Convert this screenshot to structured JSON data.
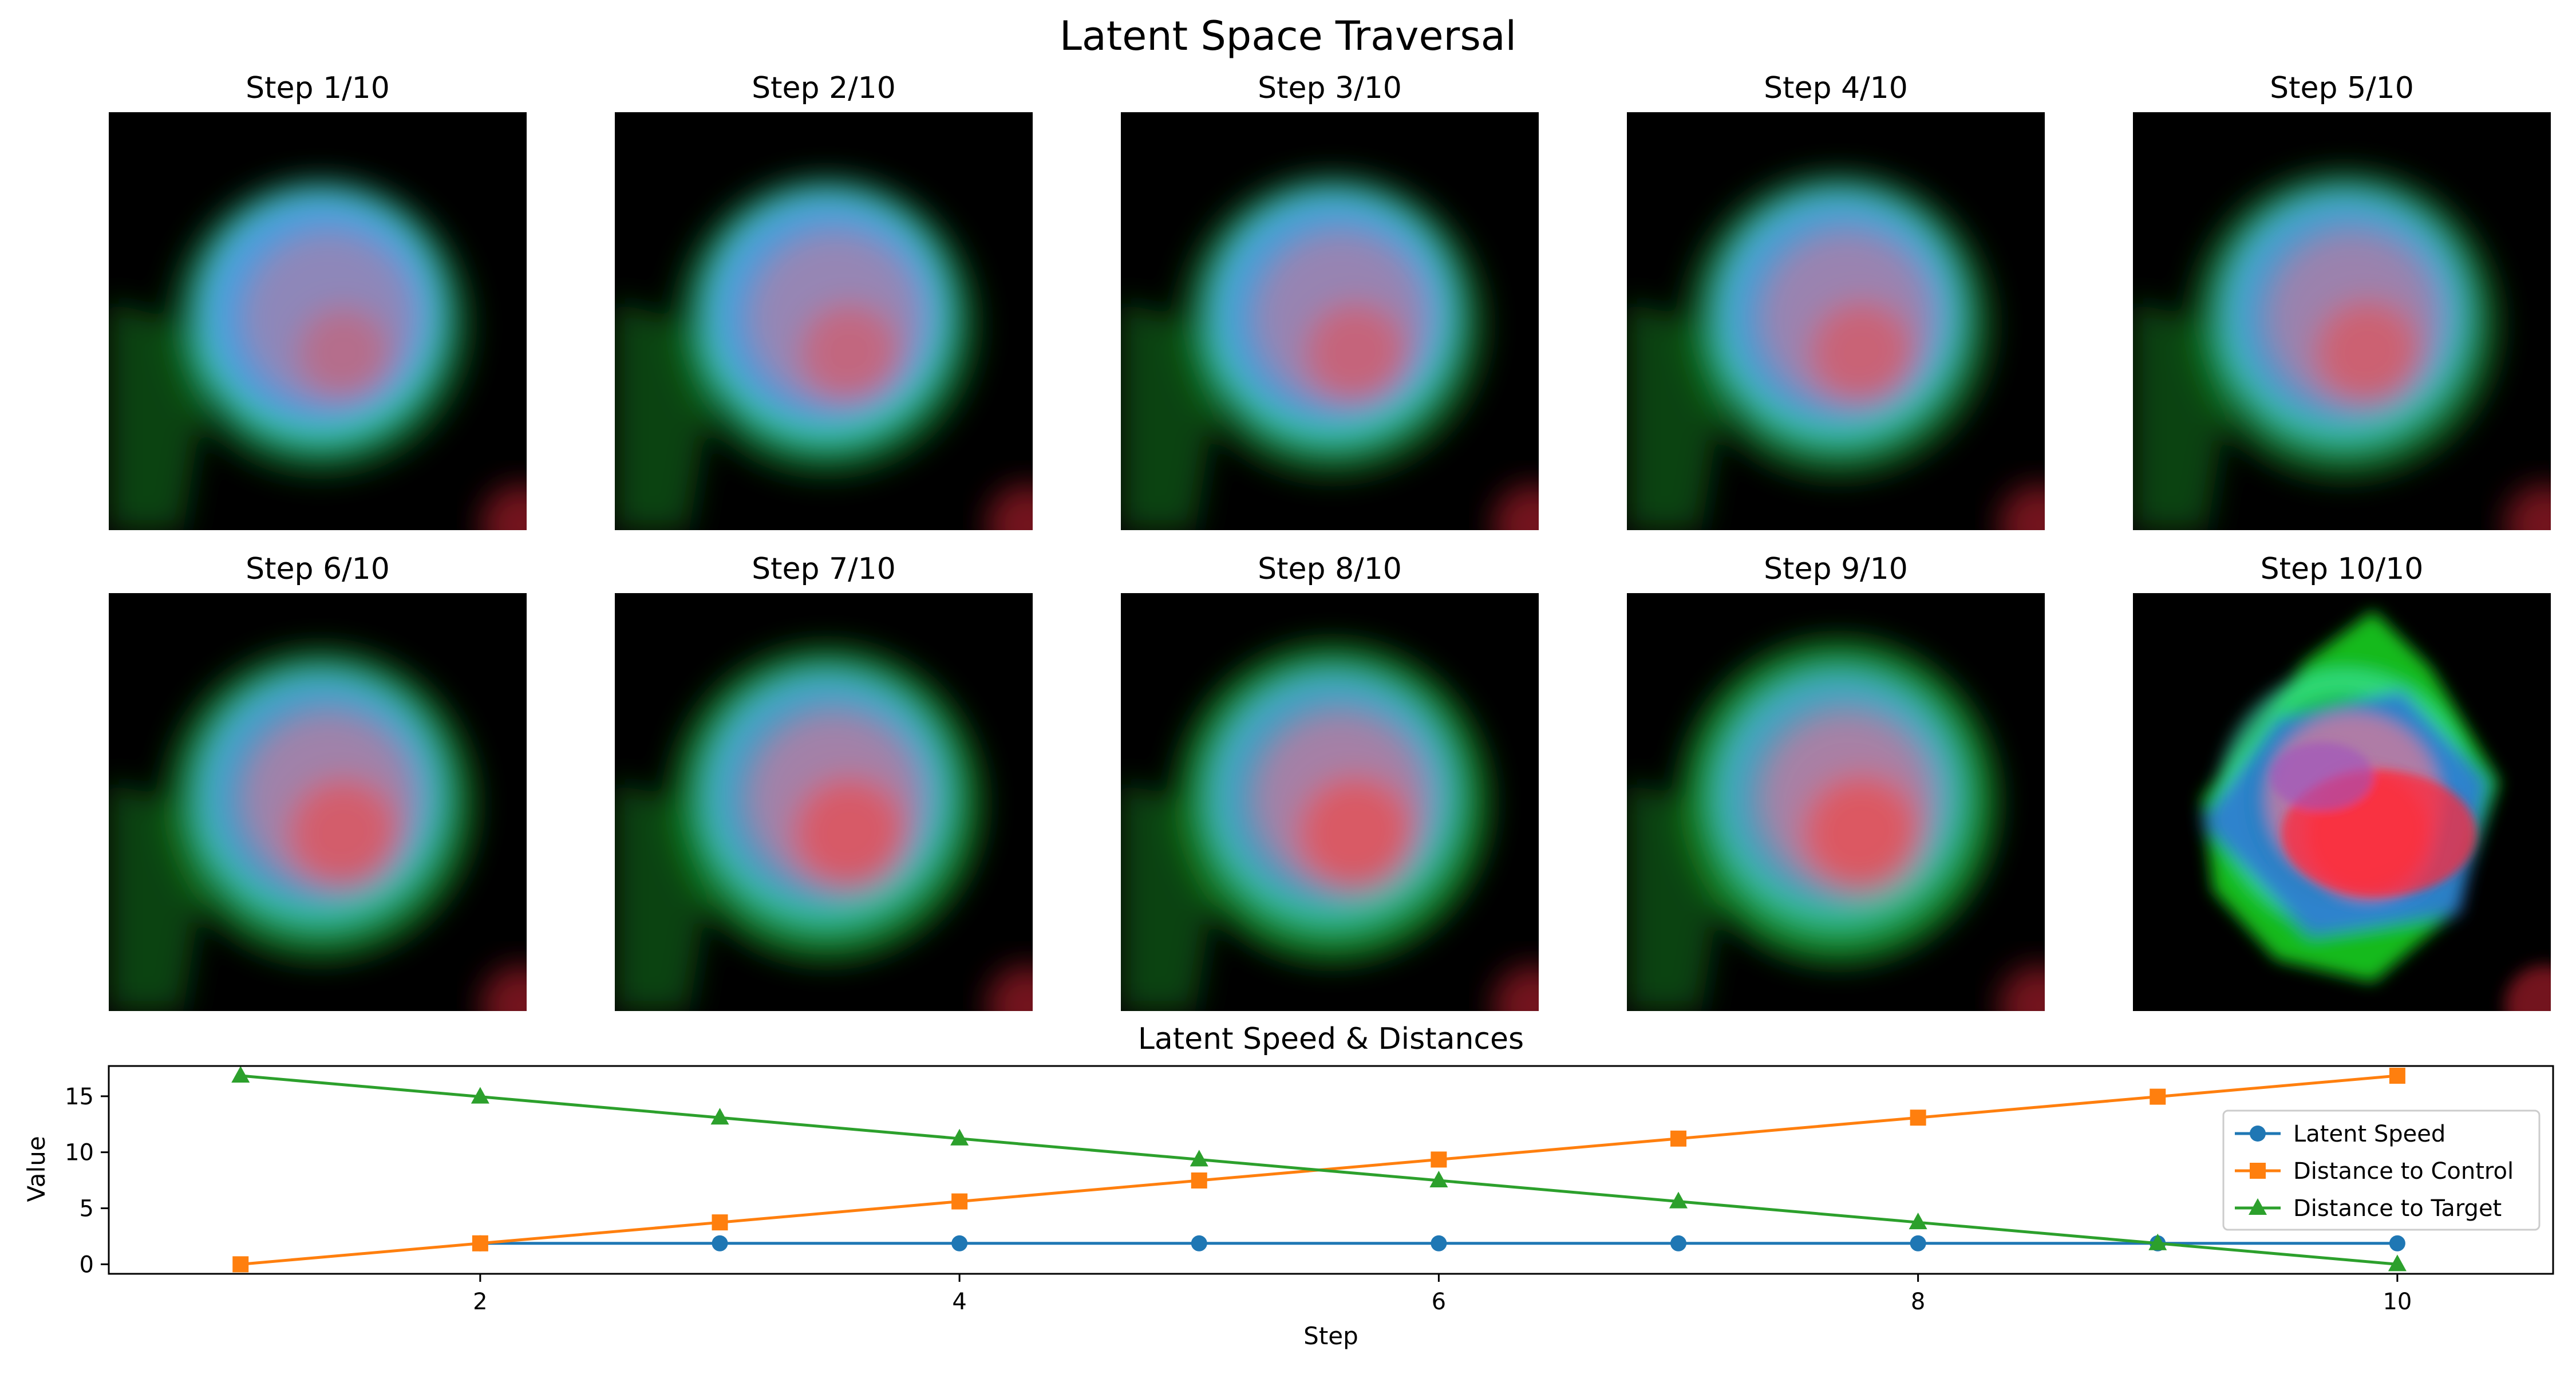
{
  "figure": {
    "title": "Latent Space Traversal"
  },
  "panels": [
    {
      "title": "Step 1/10",
      "green": 0.25,
      "red": 0.25,
      "blue": 0.95,
      "nucleus": "circle"
    },
    {
      "title": "Step 2/10",
      "green": 0.3,
      "red": 0.4,
      "blue": 0.9,
      "nucleus": "circle"
    },
    {
      "title": "Step 3/10",
      "green": 0.35,
      "red": 0.45,
      "blue": 0.85,
      "nucleus": "circle"
    },
    {
      "title": "Step 4/10",
      "green": 0.4,
      "red": 0.5,
      "blue": 0.8,
      "nucleus": "circle"
    },
    {
      "title": "Step 5/10",
      "green": 0.45,
      "red": 0.55,
      "blue": 0.75,
      "nucleus": "circle"
    },
    {
      "title": "Step 6/10",
      "green": 0.55,
      "red": 0.65,
      "blue": 0.65,
      "nucleus": "circle"
    },
    {
      "title": "Step 7/10",
      "green": 0.62,
      "red": 0.7,
      "blue": 0.6,
      "nucleus": "circle"
    },
    {
      "title": "Step 8/10",
      "green": 0.7,
      "red": 0.75,
      "blue": 0.55,
      "nucleus": "circle"
    },
    {
      "title": "Step 9/10",
      "green": 0.8,
      "red": 0.8,
      "blue": 0.5,
      "nucleus": "circle"
    },
    {
      "title": "Step 10/10",
      "green": 1.0,
      "red": 1.0,
      "blue": 0.6,
      "nucleus": "diamond"
    }
  ],
  "chart_data": {
    "type": "line",
    "title": "Latent Speed & Distances",
    "xlabel": "Step",
    "ylabel": "Value",
    "xlim": [
      0.45,
      10.65
    ],
    "ylim": [
      -0.85,
      17.7
    ],
    "xticks": [
      2,
      4,
      6,
      8,
      10
    ],
    "yticks": [
      0,
      5,
      10,
      15
    ],
    "legend_position": "right",
    "grid": false,
    "x": [
      1,
      2,
      3,
      4,
      5,
      6,
      7,
      8,
      9,
      10
    ],
    "series": [
      {
        "name": "Latent Speed",
        "color": "#1f77b4",
        "marker": "circle",
        "x": [
          2,
          3,
          4,
          5,
          6,
          7,
          8,
          9,
          10
        ],
        "values": [
          1.87,
          1.87,
          1.87,
          1.87,
          1.87,
          1.87,
          1.87,
          1.87,
          1.87
        ]
      },
      {
        "name": "Distance to Control",
        "color": "#ff7f0e",
        "marker": "square",
        "x": [
          1,
          2,
          3,
          4,
          5,
          6,
          7,
          8,
          9,
          10
        ],
        "values": [
          0.0,
          1.87,
          3.74,
          5.61,
          7.48,
          9.35,
          11.22,
          13.09,
          14.96,
          16.83
        ]
      },
      {
        "name": "Distance to Target",
        "color": "#2ca02c",
        "marker": "triangle",
        "x": [
          1,
          2,
          3,
          4,
          5,
          6,
          7,
          8,
          9,
          10
        ],
        "values": [
          16.83,
          14.96,
          13.09,
          11.22,
          9.35,
          7.48,
          5.61,
          3.74,
          1.87,
          0.0
        ]
      }
    ]
  }
}
